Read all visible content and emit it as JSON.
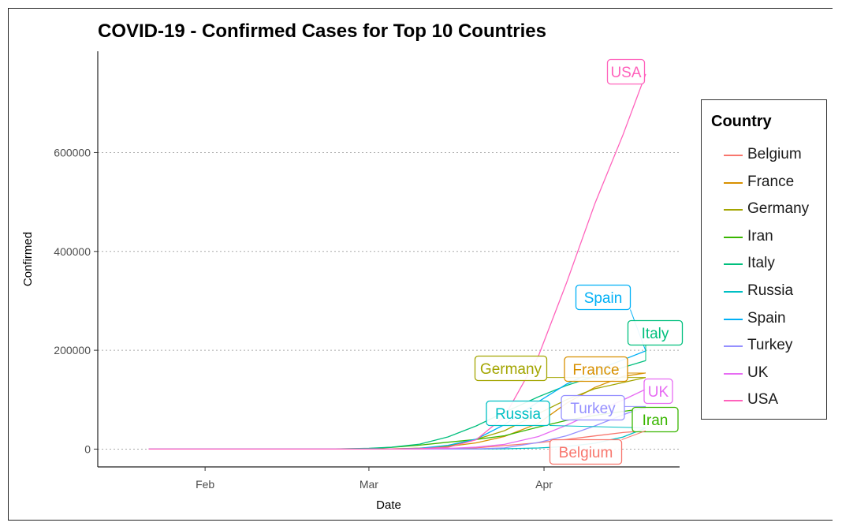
{
  "chart_data": {
    "type": "line",
    "title": "COVID-19 - Confirmed Cases for Top 10 Countries",
    "xlabel": "Date",
    "ylabel": "Confirmed",
    "x_ticks": [
      "Feb",
      "Mar",
      "Apr"
    ],
    "y_ticks": [
      0,
      200000,
      400000,
      600000
    ],
    "ylim": [
      -36000,
      805000
    ],
    "xlim": [
      "2020-01-13",
      "2020-04-25"
    ],
    "grid": "horizontal dotted major gridlines",
    "legend": {
      "title": "Country",
      "placement": "right"
    },
    "series": [
      {
        "name": "Belgium",
        "color": "#F8766D",
        "x": [
          "2020-01-22",
          "2020-03-01",
          "2020-03-10",
          "2020-03-20",
          "2020-03-31",
          "2020-04-05",
          "2020-04-10",
          "2020-04-15",
          "2020-04-19"
        ],
        "values": [
          0,
          0,
          200,
          2500,
          12800,
          19700,
          26700,
          33600,
          37100
        ]
      },
      {
        "name": "France",
        "color": "#D89000",
        "x": [
          "2020-01-22",
          "2020-03-01",
          "2020-03-05",
          "2020-03-10",
          "2020-03-15",
          "2020-03-20",
          "2020-03-25",
          "2020-03-31",
          "2020-04-05",
          "2020-04-10",
          "2020-04-15",
          "2020-04-19"
        ],
        "values": [
          0,
          130,
          400,
          2000,
          5400,
          12600,
          25600,
          52100,
          93000,
          124900,
          147000,
          154000
        ]
      },
      {
        "name": "Germany",
        "color": "#A3A500",
        "x": [
          "2020-01-22",
          "2020-03-01",
          "2020-03-05",
          "2020-03-10",
          "2020-03-15",
          "2020-03-20",
          "2020-03-25",
          "2020-03-31",
          "2020-04-05",
          "2020-04-10",
          "2020-04-15",
          "2020-04-19"
        ],
        "values": [
          0,
          130,
          350,
          1500,
          5800,
          19800,
          37300,
          71800,
          100100,
          122200,
          134800,
          145000
        ]
      },
      {
        "name": "Iran",
        "color": "#39B600",
        "x": [
          "2020-01-22",
          "2020-02-20",
          "2020-03-01",
          "2020-03-05",
          "2020-03-10",
          "2020-03-15",
          "2020-03-20",
          "2020-03-25",
          "2020-03-31",
          "2020-04-05",
          "2020-04-10",
          "2020-04-15",
          "2020-04-19"
        ],
        "values": [
          0,
          5,
          980,
          3500,
          8000,
          13900,
          19600,
          27000,
          44600,
          58200,
          68200,
          76400,
          82200
        ]
      },
      {
        "name": "Italy",
        "color": "#00BF7D",
        "x": [
          "2020-01-22",
          "2020-02-20",
          "2020-02-25",
          "2020-03-01",
          "2020-03-05",
          "2020-03-10",
          "2020-03-15",
          "2020-03-20",
          "2020-03-25",
          "2020-03-31",
          "2020-04-05",
          "2020-04-10",
          "2020-04-15",
          "2020-04-19"
        ],
        "values": [
          0,
          3,
          320,
          1700,
          3900,
          10100,
          24700,
          47000,
          74400,
          105800,
          128900,
          147600,
          165200,
          178900
        ]
      },
      {
        "name": "Russia",
        "color": "#00BFC4",
        "x": [
          "2020-01-22",
          "2020-03-01",
          "2020-03-10",
          "2020-03-15",
          "2020-03-20",
          "2020-03-25",
          "2020-03-31",
          "2020-04-05",
          "2020-04-10",
          "2020-04-15",
          "2020-04-19"
        ],
        "values": [
          0,
          2,
          20,
          60,
          250,
          660,
          2300,
          5400,
          11900,
          24500,
          42900
        ]
      },
      {
        "name": "Spain",
        "color": "#00B0F6",
        "x": [
          "2020-01-22",
          "2020-03-01",
          "2020-03-05",
          "2020-03-10",
          "2020-03-15",
          "2020-03-20",
          "2020-03-25",
          "2020-03-31",
          "2020-04-05",
          "2020-04-10",
          "2020-04-15",
          "2020-04-19"
        ],
        "values": [
          0,
          80,
          260,
          1700,
          7800,
          20400,
          49500,
          95900,
          131600,
          158300,
          180700,
          198700
        ]
      },
      {
        "name": "Turkey",
        "color": "#9590FF",
        "x": [
          "2020-01-22",
          "2020-03-10",
          "2020-03-15",
          "2020-03-20",
          "2020-03-25",
          "2020-03-31",
          "2020-04-05",
          "2020-04-10",
          "2020-04-15",
          "2020-04-19"
        ],
        "values": [
          0,
          0,
          6,
          360,
          2400,
          13500,
          27100,
          47000,
          69400,
          86300
        ]
      },
      {
        "name": "UK",
        "color": "#E76BF3",
        "x": [
          "2020-01-22",
          "2020-03-01",
          "2020-03-05",
          "2020-03-10",
          "2020-03-15",
          "2020-03-20",
          "2020-03-25",
          "2020-03-31",
          "2020-04-05",
          "2020-04-10",
          "2020-04-15",
          "2020-04-19"
        ],
        "values": [
          0,
          36,
          116,
          380,
          1400,
          4000,
          9600,
          25500,
          48400,
          74600,
          99500,
          121200
        ]
      },
      {
        "name": "USA",
        "color": "#FF62BC",
        "x": [
          "2020-01-22",
          "2020-03-01",
          "2020-03-05",
          "2020-03-10",
          "2020-03-15",
          "2020-03-20",
          "2020-03-25",
          "2020-03-31",
          "2020-04-05",
          "2020-04-10",
          "2020-04-15",
          "2020-04-19"
        ],
        "values": [
          0,
          75,
          220,
          1000,
          3500,
          19100,
          65800,
          188200,
          337000,
          496500,
          636400,
          759000
        ]
      }
    ],
    "labels": [
      {
        "text": "USA",
        "series": "USA"
      },
      {
        "text": "Spain",
        "series": "Spain"
      },
      {
        "text": "Italy",
        "series": "Italy"
      },
      {
        "text": "Germany",
        "series": "Germany"
      },
      {
        "text": "France",
        "series": "France"
      },
      {
        "text": "UK",
        "series": "UK"
      },
      {
        "text": "Russia",
        "series": "Russia"
      },
      {
        "text": "Turkey",
        "series": "Turkey"
      },
      {
        "text": "Iran",
        "series": "Iran"
      },
      {
        "text": "Belgium",
        "series": "Belgium"
      }
    ]
  }
}
